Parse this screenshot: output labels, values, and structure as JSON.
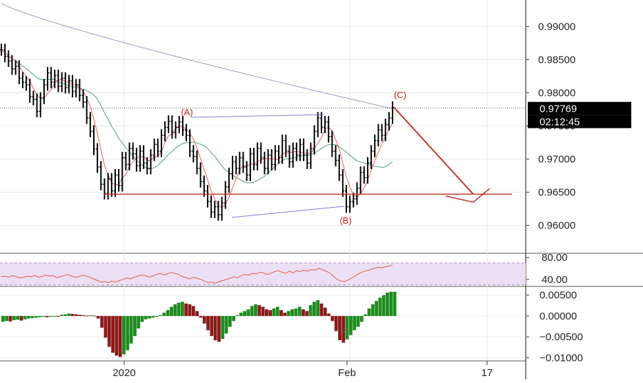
{
  "chart_data": [
    {
      "type": "line",
      "panel": "price",
      "xlabel": "",
      "ylabel": "",
      "x_ticks": [
        "2020",
        "Feb",
        "17"
      ],
      "y_ticks": [
        0.96,
        0.965,
        0.97,
        0.975,
        0.98,
        0.985,
        0.99
      ],
      "y_tick_labels": [
        "0.96000",
        "0.96500",
        "0.97000",
        "0.97500",
        "0.98000",
        "0.98500",
        "0.99000"
      ],
      "ylim": [
        0.956,
        0.994
      ],
      "grid": true,
      "last_price": "0.97769",
      "countdown": "02:12:45",
      "price_series": [
        0.9865,
        0.9855,
        0.9848,
        0.9836,
        0.984,
        0.9822,
        0.9816,
        0.9812,
        0.9794,
        0.979,
        0.9772,
        0.9792,
        0.9812,
        0.983,
        0.9816,
        0.9826,
        0.981,
        0.9822,
        0.9808,
        0.9818,
        0.9802,
        0.9812,
        0.9796,
        0.9786,
        0.9762,
        0.9742,
        0.9715,
        0.9688,
        0.9662,
        0.9648,
        0.967,
        0.9652,
        0.9676,
        0.966,
        0.9702,
        0.9692,
        0.9716,
        0.9708,
        0.969,
        0.9712,
        0.9694,
        0.9686,
        0.9706,
        0.9722,
        0.9712,
        0.9736,
        0.9748,
        0.9757,
        0.974,
        0.9748,
        0.9756,
        0.9744,
        0.9736,
        0.9712,
        0.9704,
        0.9686,
        0.9666,
        0.9652,
        0.9636,
        0.962,
        0.9628,
        0.9616,
        0.9634,
        0.9658,
        0.9678,
        0.9696,
        0.9686,
        0.9702,
        0.9688,
        0.9676,
        0.9708,
        0.9692,
        0.9716,
        0.9702,
        0.9686,
        0.9706,
        0.9692,
        0.9712,
        0.9702,
        0.9728,
        0.9712,
        0.9696,
        0.9716,
        0.9706,
        0.9722,
        0.9706,
        0.9694,
        0.9716,
        0.9742,
        0.9762,
        0.9748,
        0.9756,
        0.9734,
        0.9712,
        0.9698,
        0.9676,
        0.9652,
        0.9628,
        0.9636,
        0.964,
        0.9656,
        0.968,
        0.9672,
        0.9694,
        0.9712,
        0.9728,
        0.9744,
        0.9736,
        0.9752,
        0.9762,
        0.9778
      ],
      "series": [],
      "annotations": [
        "(A)",
        "(B)",
        "(C)"
      ]
    },
    {
      "type": "line",
      "panel": "rsi",
      "y_ticks": [
        80,
        40
      ],
      "y_tick_labels": [
        "80.00",
        "40.00"
      ],
      "ylim": [
        31,
        84
      ],
      "band": [
        30,
        70
      ],
      "values": [
        45,
        46,
        44,
        47,
        45,
        43,
        44,
        46,
        45,
        47,
        44,
        45,
        48,
        46,
        47,
        43,
        45,
        47,
        49,
        46,
        44,
        45,
        48,
        46,
        44,
        41,
        38,
        35,
        36,
        34,
        37,
        35,
        38,
        40,
        43,
        41,
        44,
        46,
        48,
        47,
        44,
        46,
        49,
        51,
        48,
        50,
        53,
        51,
        49,
        45,
        43,
        41,
        44,
        42,
        40,
        37,
        34,
        35,
        33,
        36,
        38,
        40,
        42,
        45,
        43,
        47,
        49,
        48,
        51,
        50,
        53,
        52,
        49,
        51,
        54,
        56,
        53,
        51,
        55,
        52,
        56,
        54,
        57,
        55,
        58,
        57,
        60,
        58,
        55,
        52,
        46,
        40,
        37,
        36,
        39,
        43,
        47,
        51,
        54,
        56,
        58,
        60,
        62,
        61,
        63,
        64,
        66
      ]
    },
    {
      "type": "bar",
      "panel": "histogram",
      "y_ticks": [
        0.005,
        0,
        -0.005,
        -0.01
      ],
      "y_tick_labels": [
        "0.00500",
        "0.00000",
        "−0.00500",
        "−0.01000"
      ],
      "ylim": [
        -0.0106,
        0.0066
      ],
      "up_color": "#1e8c1e",
      "down_color": "#8b1a1a",
      "values": [
        -0.0014,
        -0.0012,
        -0.0013,
        -0.001,
        -0.0009,
        -0.0011,
        -0.0008,
        -0.0006,
        -0.0005,
        -0.0004,
        -0.0003,
        -0.0002,
        -0.0003,
        -0.0002,
        -0.0001,
        -0.0002,
        0.0003,
        0.0004,
        0.0006,
        0.0005,
        0.0004,
        0.0003,
        0.0002,
        0.0001,
        0.0002,
        0.0001,
        -0.0006,
        -0.0028,
        -0.0052,
        -0.0074,
        -0.0088,
        -0.0095,
        -0.0098,
        -0.0092,
        -0.0082,
        -0.0066,
        -0.0048,
        -0.003,
        -0.0014,
        -0.0008,
        -0.0006,
        -0.0004,
        -0.0002,
        0.0002,
        0.0008,
        0.0014,
        0.0022,
        0.0028,
        0.0032,
        0.0034,
        0.003,
        0.0028,
        0.0024,
        0.0012,
        -0.0004,
        -0.0018,
        -0.0034,
        -0.0048,
        -0.0058,
        -0.0062,
        -0.0055,
        -0.0042,
        -0.0026,
        -0.0012,
        0.0002,
        0.0008,
        0.0012,
        0.0016,
        0.0024,
        0.0028,
        0.0026,
        0.0022,
        0.0016,
        0.0014,
        0.0018,
        0.0022,
        0.0014,
        0.0008,
        0.0012,
        0.0016,
        0.0018,
        0.0022,
        0.0016,
        0.0012,
        0.0026,
        0.0034,
        0.0038,
        0.003,
        0.002,
        0.0006,
        -0.0012,
        -0.0036,
        -0.0058,
        -0.0064,
        -0.0056,
        -0.0046,
        -0.0034,
        -0.0026,
        -0.0014,
        0.0004,
        0.0018,
        0.0028,
        0.0036,
        0.0044,
        0.005,
        0.0056,
        0.0058,
        0.0058
      ]
    }
  ]
}
